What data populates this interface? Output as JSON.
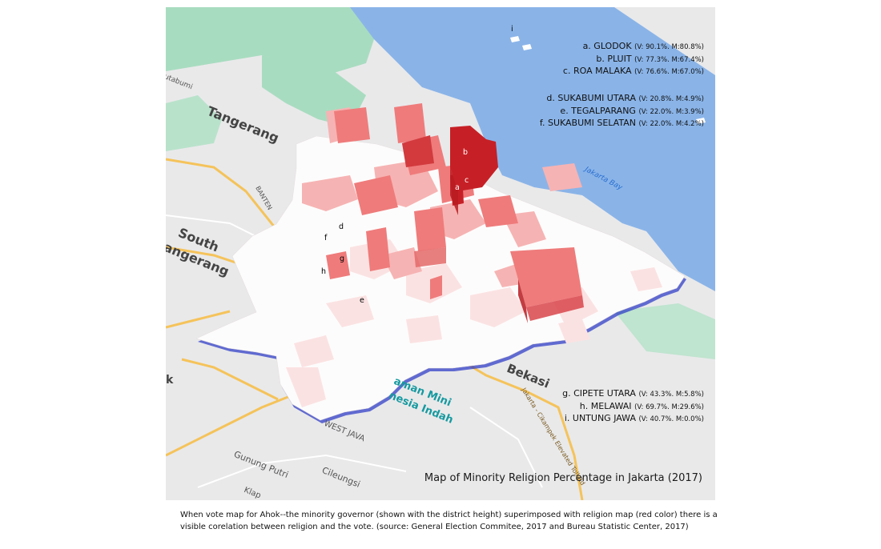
{
  "map_title": "Map of Minority Religion Percentage in Jakarta (2017)",
  "caption": "When vote map for Ahok--the minority governor (shown with the district height) superimposed with religion map (red color) there is a visible corelation between religion and the vote. (source: General Election Commitee, 2017 and Bureau Statistic Center, 2017)",
  "legend_top": [
    {
      "label": "a. GLODOK",
      "stats": "(V: 90.1%. M:80.8%)"
    },
    {
      "label": "b. PLUIT",
      "stats": "(V: 77.3%. M:67.4%)"
    },
    {
      "label": "c. ROA MALAKA",
      "stats": "(V: 76.6%. M:67.0%)"
    }
  ],
  "legend_mid": [
    {
      "label": "d. SUKABUMI UTARA",
      "stats": "(V: 20.8%. M:4.9%)"
    },
    {
      "label": "e. TEGALPARANG",
      "stats": "(V: 22.0%. M:3.9%)"
    },
    {
      "label": "f. SUKABUMI SELATAN",
      "stats": "(V: 22.0%. M:4.2%)"
    }
  ],
  "legend_bottom": [
    {
      "label": "g. CIPETE UTARA",
      "stats": "(V: 43.3%. M:5.8%)"
    },
    {
      "label": "h. MELAWAI",
      "stats": "(V: 69.7%. M:29.6%)"
    },
    {
      "label": "i. UNTUNG JAWA",
      "stats": "(V: 40.7%. M:0.0%)"
    }
  ],
  "pins": [
    "a",
    "b",
    "c",
    "d",
    "e",
    "f",
    "g",
    "h",
    "i"
  ],
  "places": {
    "tangerang": "Tangerang",
    "south_tangerang_1": "South",
    "south_tangerang_2": "angerang",
    "bekasi": "Bekasi",
    "k": "k",
    "utabumi": "utabumi",
    "jakarta_bay": "Jakarta Bay",
    "taman_mini_1": "aman Mini",
    "taman_mini_2": "nesia Indah",
    "west_java": "WEST JAVA",
    "gunung_putri": "Gunung Putri",
    "cileungsi": "Cileungsi",
    "klap": "Klap",
    "banten": "BANTEN",
    "toll_road": "Jakarta - Cikampek Elevated Toll Rd"
  },
  "colors": {
    "sea": "#8ab4e8",
    "land": "#e9e9ea",
    "green": "#a8dcc0",
    "highway": "#f5c35a",
    "high_minority": "#c62026",
    "mid_minority": "#f08a8a",
    "low_minority": "#fbe2e2",
    "no_minority": "#ffffff"
  }
}
